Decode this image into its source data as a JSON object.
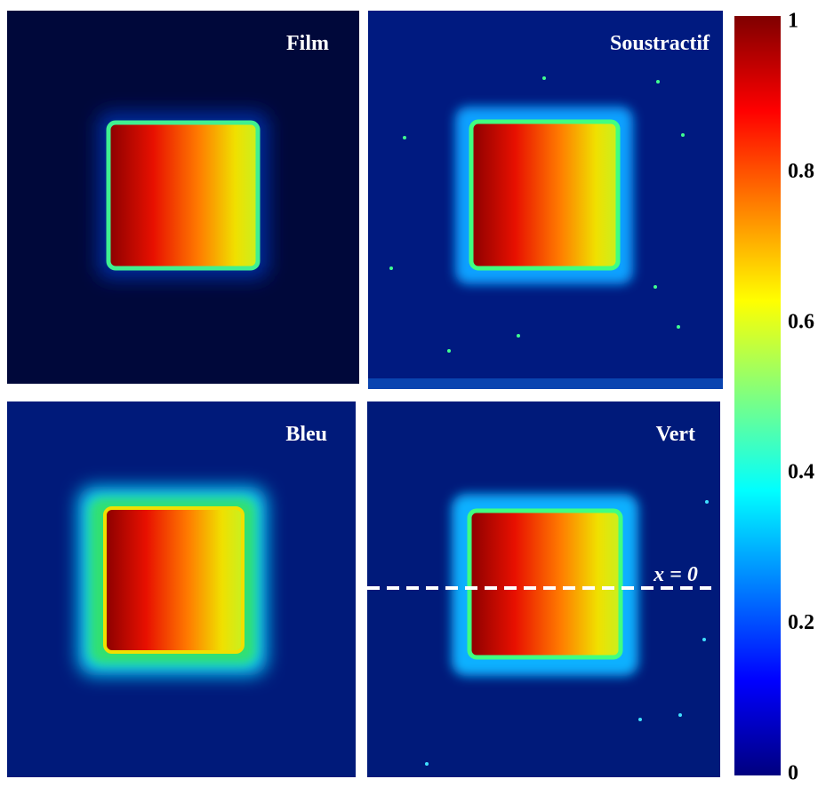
{
  "panels": [
    {
      "label": "Film"
    },
    {
      "label": "Soustractif"
    },
    {
      "label": "Bleu"
    },
    {
      "label": "Vert",
      "annotation": "x = 0"
    }
  ],
  "colorbar": {
    "lim": [
      0,
      1
    ],
    "ticks": [
      0,
      0.2,
      0.4,
      0.6,
      0.8,
      1
    ]
  }
}
